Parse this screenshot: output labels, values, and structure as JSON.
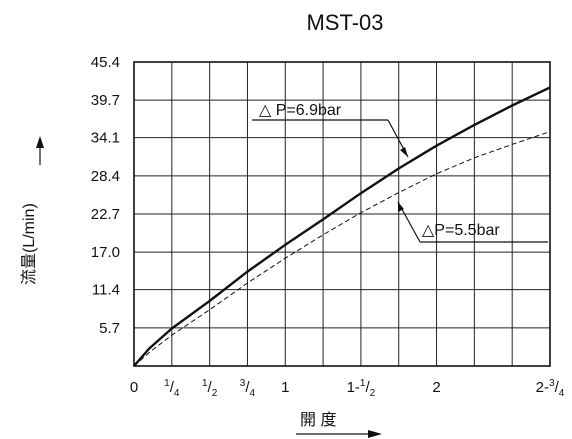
{
  "chart_data": {
    "type": "line",
    "title": "MST-03",
    "xlabel": "開 度",
    "ylabel": "流量(L/min)",
    "xlim": [
      0,
      2.75
    ],
    "ylim": [
      0,
      45.4
    ],
    "y_ticks": [
      5.7,
      11.4,
      17.0,
      22.7,
      28.4,
      34.1,
      39.7,
      45.4
    ],
    "y_tick_labels": [
      "5.7",
      "11.4",
      "17.0",
      "22.7",
      "28.4",
      "34.1",
      "39.7",
      "45.4"
    ],
    "x_ticks": [
      {
        "value": 0,
        "whole": "0",
        "num": "",
        "den": ""
      },
      {
        "value": 0.25,
        "whole": "",
        "num": "1",
        "den": "4"
      },
      {
        "value": 0.5,
        "whole": "",
        "num": "1",
        "den": "2"
      },
      {
        "value": 0.75,
        "whole": "",
        "num": "3",
        "den": "4"
      },
      {
        "value": 1,
        "whole": "1",
        "num": "",
        "den": ""
      },
      {
        "value": 1.5,
        "whole": "1-",
        "num": "1",
        "den": "2"
      },
      {
        "value": 2,
        "whole": "2",
        "num": "",
        "den": ""
      },
      {
        "value": 2.75,
        "whole": "2-",
        "num": "3",
        "den": "4"
      }
    ],
    "grid": true,
    "series": [
      {
        "name": "△ P=6.9bar",
        "color": "#111111",
        "style": "solid",
        "x": [
          0,
          0.1,
          0.25,
          0.5,
          0.75,
          1.0,
          1.25,
          1.5,
          1.75,
          2.0,
          2.25,
          2.5,
          2.75
        ],
        "y": [
          0,
          2.6,
          5.6,
          9.7,
          14.1,
          18.1,
          21.9,
          25.8,
          29.5,
          32.9,
          36.0,
          38.9,
          41.6
        ]
      },
      {
        "name": "△P=5.5bar",
        "color": "#111111",
        "style": "dashed",
        "x": [
          0,
          0.1,
          0.25,
          0.5,
          0.75,
          1.0,
          1.25,
          1.5,
          1.75,
          2.0,
          2.25,
          2.5,
          2.75
        ],
        "y": [
          0,
          2.0,
          4.6,
          8.4,
          12.4,
          16.1,
          19.6,
          22.9,
          25.9,
          28.7,
          31.1,
          33.1,
          35.0
        ]
      }
    ]
  }
}
